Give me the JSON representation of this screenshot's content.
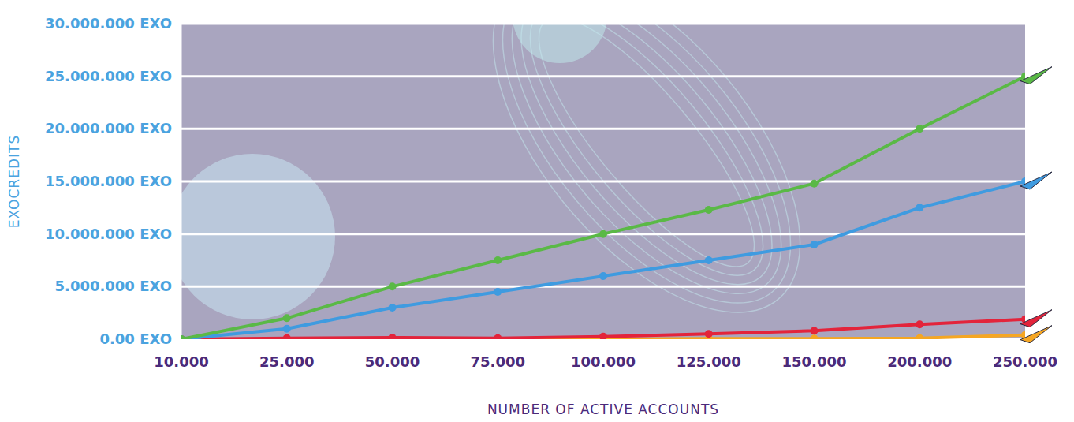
{
  "chart_data": {
    "type": "line",
    "x_label": "NUMBER OF ACTIVE ACCOUNTS",
    "y_label": "EXOCREDITS",
    "categories": [
      "10.000",
      "25.000",
      "50.000",
      "75.000",
      "100.000",
      "125.000",
      "150.000",
      "200.000",
      "250.000"
    ],
    "series": [
      {
        "color": "#5ab946",
        "marker": "circle",
        "values": [
          0,
          2000000,
          5000000,
          7500000,
          10000000,
          12300000,
          14800000,
          20000000,
          25000000
        ]
      },
      {
        "color": "#3f9be0",
        "marker": "circle",
        "values": [
          0,
          1000000,
          3000000,
          4500000,
          6000000,
          7500000,
          9000000,
          12500000,
          15000000
        ]
      },
      {
        "color": "#e3243b",
        "marker": "circle",
        "values": [
          0,
          100000,
          150000,
          100000,
          250000,
          500000,
          800000,
          1400000,
          1900000
        ]
      },
      {
        "color": "#f5a623",
        "marker": "circle",
        "values": [
          0,
          0,
          0,
          0,
          0,
          50000,
          50000,
          100000,
          400000
        ]
      }
    ],
    "ylim": [
      0,
      30000000
    ],
    "yticks": [
      {
        "value": 0,
        "label": "0.00 EXO"
      },
      {
        "value": 5000000,
        "label": "5.000.000 EXO"
      },
      {
        "value": 10000000,
        "label": "10.000.000 EXO"
      },
      {
        "value": 15000000,
        "label": "15.000.000 EXO"
      },
      {
        "value": 20000000,
        "label": "20.000.000 EXO"
      },
      {
        "value": 25000000,
        "label": "25.000.000 EXO"
      },
      {
        "value": 30000000,
        "label": "30.000.000 EXO"
      }
    ],
    "grid": true
  }
}
